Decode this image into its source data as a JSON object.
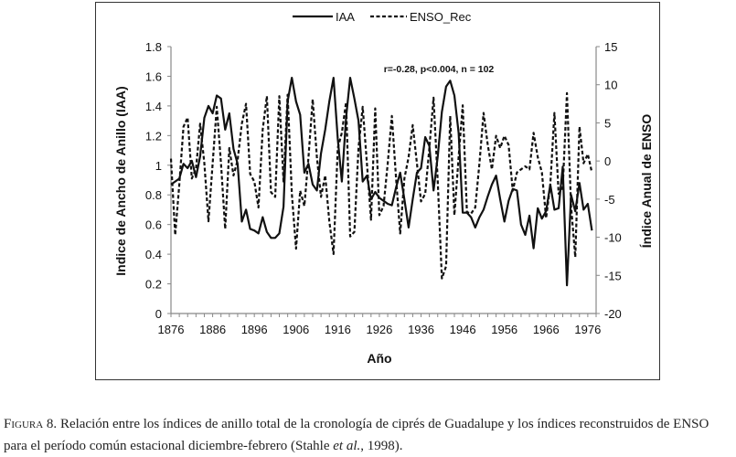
{
  "chart_data": {
    "type": "line",
    "xlabel": "Año",
    "ylabel": "Indice de Ancho de Anillo (IAA)",
    "y2label": "Índice Anual de ENSO",
    "annotation": "r=-0.28, p<0.004, n = 102",
    "xlim": [
      1876,
      1978
    ],
    "ylim": [
      0,
      1.8
    ],
    "y2lim": [
      -20,
      15
    ],
    "x_ticks": [
      "1876",
      "1886",
      "1896",
      "1906",
      "1916",
      "1926",
      "1936",
      "1946",
      "1956",
      "1966",
      "1976"
    ],
    "y_ticks": [
      "0",
      "0.2",
      "0.4",
      "0.6",
      "0.8",
      "1",
      "1.2",
      "1.4",
      "1.6",
      "1.8"
    ],
    "y2_ticks": [
      "-20",
      "-15",
      "-10",
      "-5",
      "0",
      "5",
      "10",
      "15"
    ],
    "grid": false,
    "legend_position": "top-center",
    "x_start": 1876,
    "series": [
      {
        "name": "IAA",
        "axis": "left",
        "style": "solid",
        "color": "#111111",
        "values": [
          0.87,
          0.89,
          0.91,
          1.01,
          0.98,
          1.03,
          0.92,
          1.06,
          1.32,
          1.4,
          1.35,
          1.47,
          1.45,
          1.24,
          1.35,
          1.11,
          1.01,
          0.62,
          0.7,
          0.57,
          0.56,
          0.54,
          0.65,
          0.55,
          0.51,
          0.51,
          0.54,
          0.72,
          1.43,
          1.59,
          1.43,
          1.34,
          0.95,
          1.01,
          0.87,
          0.83,
          1.08,
          1.24,
          1.43,
          1.59,
          1.18,
          0.89,
          1.32,
          1.59,
          1.45,
          1.3,
          0.89,
          0.93,
          0.77,
          0.82,
          0.78,
          0.76,
          0.74,
          0.73,
          0.85,
          0.95,
          0.77,
          0.58,
          0.77,
          0.95,
          0.98,
          1.19,
          1.13,
          0.83,
          1.06,
          1.36,
          1.53,
          1.57,
          1.47,
          1.22,
          0.68,
          0.68,
          0.65,
          0.58,
          0.65,
          0.7,
          0.79,
          0.87,
          0.93,
          0.77,
          0.62,
          0.76,
          0.84,
          0.83,
          0.6,
          0.53,
          0.66,
          0.44,
          0.71,
          0.64,
          0.69,
          0.87,
          0.7,
          0.71,
          0.99,
          0.19,
          0.8,
          0.69,
          0.88,
          0.7,
          0.74,
          0.56
        ]
      },
      {
        "name": "ENSO_Rec",
        "axis": "right",
        "style": "dashed",
        "color": "#111111",
        "values": [
          0.3,
          -9.7,
          -3.1,
          4.5,
          5.7,
          -2.3,
          -1.0,
          4.9,
          -0.3,
          -7.9,
          -0.3,
          7.1,
          -0.3,
          -8.9,
          1.7,
          -1.9,
          0.1,
          4.9,
          7.5,
          -1.7,
          -2.7,
          -6.1,
          4.1,
          8.5,
          -4.1,
          -4.7,
          8.5,
          -2.7,
          8.7,
          -4.3,
          -11.5,
          -3.9,
          -5.9,
          0.5,
          8.1,
          0.5,
          -4.7,
          -1.9,
          -7.9,
          -12.2,
          1.7,
          3.7,
          7.7,
          -9.9,
          -9.3,
          1.7,
          7.1,
          -0.3,
          -7.7,
          6.9,
          -7.1,
          -5.9,
          -0.3,
          5.9,
          -2.3,
          -9.5,
          -2.3,
          0.5,
          4.7,
          -0.3,
          -5.3,
          -4.3,
          1.7,
          8.3,
          -2.7,
          -15.4,
          -13.8,
          5.9,
          -7.1,
          0.5,
          7.3,
          -6.7,
          -6.9,
          -6.1,
          -0.3,
          6.3,
          2.1,
          -1.1,
          3.3,
          1.7,
          3.3,
          2.1,
          -3.9,
          -1.5,
          -1.1,
          -0.7,
          -1.1,
          3.7,
          0.5,
          -1.5,
          -7.5,
          -3.1,
          6.3,
          -4.3,
          -3.5,
          8.9,
          -5.9,
          -12.6,
          4.5,
          -0.3,
          0.9,
          -1.5
        ]
      }
    ]
  },
  "caption": {
    "label": "Figura 8.",
    "text_1": " Relación entre los índices de anillo total de la cronología de ciprés de Guadalupe y los índices reconstruidos de ",
    "enso": "ENSO",
    "text_2": " para el período común estacional diciembre-febrero (Stahle ",
    "etal": "et al.",
    "text_3": ", 1998)."
  }
}
